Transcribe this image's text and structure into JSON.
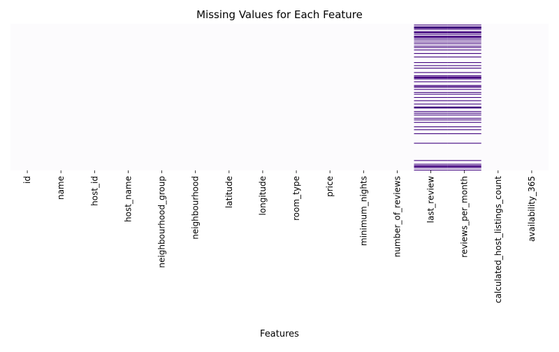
{
  "chart_data": {
    "type": "heatmap",
    "title": "Missing Values for Each Feature",
    "xlabel": "Features",
    "ylabel": "",
    "y_tick_labels": "none",
    "colorbar": false,
    "colormap": {
      "present": "#fcfbfd",
      "missing": "#3f007d"
    },
    "categories": [
      "id",
      "name",
      "host_id",
      "host_name",
      "neighbourhood_group",
      "neighbourhood",
      "latitude",
      "longitude",
      "room_type",
      "price",
      "minimum_nights",
      "number_of_reviews",
      "last_review",
      "reviews_per_month",
      "calculated_host_listings_count",
      "availability_365"
    ],
    "missing_columns": [
      "last_review",
      "reviews_per_month"
    ],
    "missing_row_fractions": [
      0.006,
      0.02,
      0.028,
      0.036,
      0.051,
      0.056,
      0.06,
      0.07,
      0.085,
      0.097,
      0.108,
      0.122,
      0.134,
      0.15,
      0.16,
      0.176,
      0.2,
      0.224,
      0.262,
      0.283,
      0.3,
      0.33,
      0.352,
      0.374,
      0.393,
      0.418,
      0.426,
      0.43,
      0.445,
      0.466,
      0.478,
      0.5,
      0.522,
      0.545,
      0.568,
      0.596,
      0.608,
      0.62,
      0.642,
      0.653,
      0.67,
      0.7,
      0.72,
      0.747,
      0.812,
      0.93,
      0.955,
      0.98,
      0.995
    ],
    "thick_row_fractions": [
      0.018,
      0.082,
      0.36,
      0.565,
      0.965
    ]
  }
}
